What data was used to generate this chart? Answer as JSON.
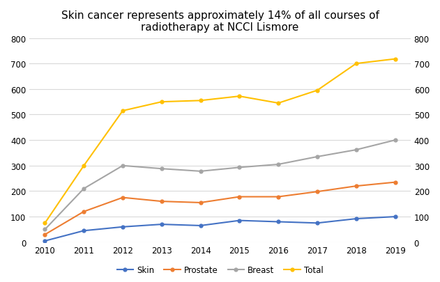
{
  "years": [
    2010,
    2011,
    2012,
    2013,
    2014,
    2015,
    2016,
    2017,
    2018,
    2019
  ],
  "skin": [
    5,
    45,
    60,
    70,
    65,
    85,
    80,
    75,
    92,
    100
  ],
  "prostate": [
    30,
    120,
    175,
    160,
    155,
    178,
    178,
    198,
    220,
    235
  ],
  "breast": [
    50,
    210,
    300,
    288,
    278,
    293,
    305,
    335,
    362,
    400
  ],
  "total": [
    75,
    300,
    515,
    550,
    555,
    572,
    545,
    595,
    700,
    718
  ],
  "title": "Skin cancer represents approximately 14% of all courses of\nradiotherapy at NCCI Lismore",
  "skin_color": "#4472C4",
  "prostate_color": "#ED7D31",
  "breast_color": "#A5A5A5",
  "total_color": "#FFC000",
  "ylim": [
    0,
    800
  ],
  "yticks": [
    0,
    100,
    200,
    300,
    400,
    500,
    600,
    700,
    800
  ],
  "background_color": "#FFFFFF",
  "plot_bg": "#FFFFFF",
  "grid_color": "#D9D9D9",
  "title_fontsize": 11,
  "tick_fontsize": 8.5,
  "legend_fontsize": 8.5
}
